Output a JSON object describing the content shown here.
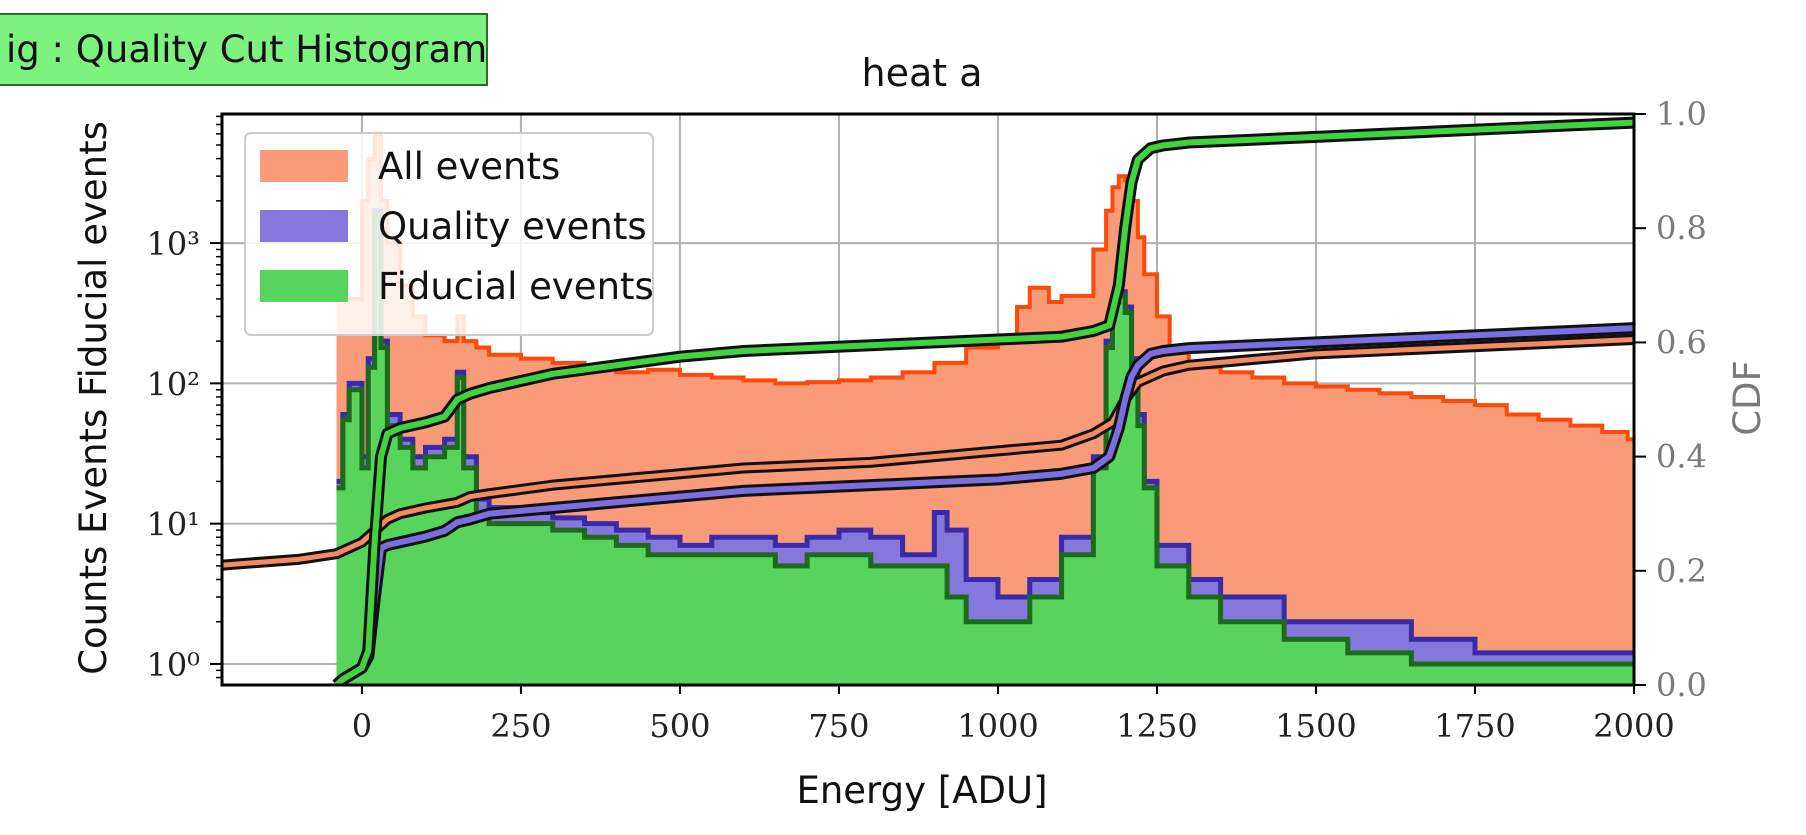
{
  "tag_label": "ig : Quality Cut Histogram",
  "chart_data": {
    "type": "area",
    "title": "heat a",
    "xlabel": "Energy [ADU]",
    "ylabel": "Counts Events Fiducial events",
    "y2label": "CDF",
    "xlim": [
      -220,
      2000
    ],
    "ylim_log10": [
      -0.15,
      3.92
    ],
    "y2lim": [
      0.0,
      1.0
    ],
    "yscale": "log",
    "grid": true,
    "legend_position": "top-left",
    "xticks": [
      0,
      250,
      500,
      750,
      1000,
      1250,
      1500,
      1750,
      2000
    ],
    "xtick_labels": [
      "0",
      "250",
      "500",
      "750",
      "1000",
      "1250",
      "1500",
      "1750",
      "2000"
    ],
    "yticks_log10": [
      0,
      1,
      2,
      3
    ],
    "ytick_labels": [
      "10⁰",
      "10¹",
      "10²",
      "10³"
    ],
    "y2ticks": [
      0.0,
      0.2,
      0.4,
      0.6,
      0.8,
      1.0
    ],
    "y2tick_labels": [
      "0.0",
      "0.2",
      "0.4",
      "0.6",
      "0.8",
      "1.0"
    ],
    "colors": {
      "all_fill": "#f99a78",
      "all_edge": "#fb4a0a",
      "quality_fill": "#8478dc",
      "quality_edge": "#3a2aa8",
      "fiducial_fill": "#58d45c",
      "fiducial_edge": "#1d6a1d",
      "tag_bg": "#7ef27e"
    },
    "series": [
      {
        "name": "All events",
        "x": [
          -40,
          0,
          10,
          20,
          30,
          40,
          60,
          80,
          100,
          130,
          150,
          160,
          180,
          200,
          250,
          300,
          350,
          400,
          450,
          500,
          550,
          600,
          650,
          700,
          750,
          800,
          850,
          900,
          950,
          1000,
          1030,
          1050,
          1080,
          1100,
          1150,
          1170,
          1180,
          1190,
          1200,
          1210,
          1220,
          1230,
          1250,
          1270,
          1300,
          1350,
          1400,
          1450,
          1500,
          1550,
          1600,
          1650,
          1700,
          1750,
          1800,
          1850,
          1900,
          1950,
          1990,
          2000
        ],
        "values": [
          400,
          2000,
          4000,
          6000,
          2000,
          1000,
          500,
          300,
          220,
          200,
          300,
          200,
          180,
          160,
          150,
          140,
          130,
          120,
          125,
          115,
          110,
          105,
          100,
          102,
          105,
          110,
          120,
          140,
          180,
          200,
          350,
          480,
          380,
          420,
          900,
          1700,
          2500,
          3000,
          2800,
          2000,
          1100,
          600,
          300,
          180,
          130,
          120,
          110,
          100,
          95,
          90,
          85,
          80,
          75,
          70,
          60,
          55,
          50,
          45,
          40,
          40
        ]
      },
      {
        "name": "Quality events",
        "x": [
          -40,
          -30,
          -20,
          0,
          10,
          20,
          30,
          40,
          60,
          80,
          100,
          130,
          150,
          160,
          180,
          200,
          250,
          300,
          350,
          400,
          450,
          500,
          550,
          600,
          650,
          700,
          750,
          800,
          850,
          900,
          920,
          950,
          1000,
          1050,
          1100,
          1150,
          1170,
          1180,
          1190,
          1200,
          1210,
          1220,
          1230,
          1250,
          1300,
          1350,
          1400,
          1450,
          1500,
          1550,
          1600,
          1650,
          1700,
          1750,
          1800,
          1850,
          1900,
          1950,
          2000
        ],
        "values": [
          20,
          60,
          100,
          30,
          150,
          1700,
          200,
          60,
          40,
          30,
          35,
          40,
          120,
          30,
          15,
          13,
          12,
          11,
          10,
          9,
          8,
          7,
          8,
          8,
          7,
          8,
          9,
          8,
          6,
          12,
          9,
          4,
          3,
          4,
          8,
          30,
          200,
          400,
          450,
          350,
          150,
          60,
          20,
          7,
          4,
          3,
          3,
          2,
          2,
          2,
          2,
          1.5,
          1.5,
          1.2,
          1.2,
          1.2,
          1.2,
          1.2,
          1.2
        ]
      },
      {
        "name": "Fiducial events",
        "x": [
          -40,
          -30,
          -20,
          0,
          10,
          20,
          30,
          40,
          60,
          80,
          100,
          130,
          150,
          160,
          180,
          200,
          250,
          300,
          350,
          400,
          450,
          500,
          550,
          600,
          650,
          700,
          750,
          800,
          850,
          900,
          920,
          950,
          1000,
          1050,
          1100,
          1150,
          1170,
          1180,
          1190,
          1200,
          1210,
          1220,
          1230,
          1250,
          1300,
          1350,
          1400,
          1450,
          1500,
          1550,
          1600,
          1650,
          1700,
          1750,
          1800,
          1850,
          1900,
          1950,
          2000
        ],
        "values": [
          18,
          55,
          90,
          25,
          130,
          1600,
          180,
          50,
          35,
          25,
          30,
          35,
          110,
          25,
          12,
          10,
          10,
          9,
          8,
          7,
          6,
          6,
          6,
          6,
          5,
          6,
          6,
          5,
          5,
          5,
          3,
          2,
          2,
          3,
          6,
          25,
          180,
          380,
          420,
          320,
          130,
          50,
          18,
          5,
          3,
          2,
          2,
          1.5,
          1.5,
          1.2,
          1.2,
          1,
          1,
          1,
          1,
          1,
          1,
          1,
          1
        ]
      }
    ],
    "cdf_series": [
      {
        "name": "All events",
        "x": [
          -220,
          -100,
          -40,
          0,
          20,
          40,
          60,
          100,
          150,
          170,
          200,
          300,
          400,
          500,
          600,
          700,
          800,
          900,
          1000,
          1100,
          1150,
          1180,
          1200,
          1220,
          1240,
          1260,
          1300,
          1400,
          1500,
          1600,
          1700,
          1800,
          1900,
          2000
        ],
        "values": [
          0.21,
          0.22,
          0.23,
          0.25,
          0.27,
          0.29,
          0.3,
          0.31,
          0.32,
          0.33,
          0.335,
          0.35,
          0.36,
          0.37,
          0.38,
          0.385,
          0.39,
          0.4,
          0.41,
          0.42,
          0.44,
          0.46,
          0.5,
          0.53,
          0.54,
          0.55,
          0.56,
          0.57,
          0.58,
          0.585,
          0.59,
          0.595,
          0.6,
          0.605
        ]
      },
      {
        "name": "Quality events",
        "x": [
          -40,
          -30,
          -15,
          0,
          10,
          20,
          30,
          40,
          60,
          80,
          100,
          130,
          150,
          170,
          200,
          300,
          400,
          500,
          600,
          700,
          800,
          900,
          1000,
          1100,
          1150,
          1175,
          1190,
          1200,
          1210,
          1220,
          1240,
          1260,
          1300,
          1400,
          1500,
          1600,
          1700,
          1800,
          1900,
          2000
        ],
        "values": [
          0.0,
          0.01,
          0.02,
          0.03,
          0.05,
          0.15,
          0.24,
          0.245,
          0.25,
          0.255,
          0.26,
          0.27,
          0.285,
          0.29,
          0.3,
          0.31,
          0.32,
          0.33,
          0.34,
          0.345,
          0.35,
          0.355,
          0.36,
          0.37,
          0.38,
          0.4,
          0.45,
          0.5,
          0.54,
          0.56,
          0.58,
          0.585,
          0.59,
          0.595,
          0.6,
          0.605,
          0.61,
          0.615,
          0.62,
          0.625
        ]
      },
      {
        "name": "Fiducial events",
        "x": [
          -40,
          -30,
          -15,
          0,
          10,
          20,
          30,
          40,
          60,
          80,
          100,
          130,
          150,
          170,
          200,
          300,
          400,
          500,
          600,
          700,
          800,
          900,
          1000,
          1100,
          1150,
          1175,
          1190,
          1200,
          1210,
          1220,
          1240,
          1260,
          1300,
          1400,
          1500,
          1600,
          1700,
          1800,
          1900,
          2000
        ],
        "values": [
          0.0,
          0.01,
          0.02,
          0.03,
          0.06,
          0.25,
          0.4,
          0.44,
          0.45,
          0.455,
          0.46,
          0.47,
          0.5,
          0.51,
          0.52,
          0.545,
          0.56,
          0.575,
          0.585,
          0.59,
          0.595,
          0.6,
          0.605,
          0.61,
          0.62,
          0.63,
          0.7,
          0.8,
          0.88,
          0.92,
          0.94,
          0.945,
          0.95,
          0.955,
          0.96,
          0.965,
          0.97,
          0.975,
          0.98,
          0.985
        ]
      }
    ]
  }
}
